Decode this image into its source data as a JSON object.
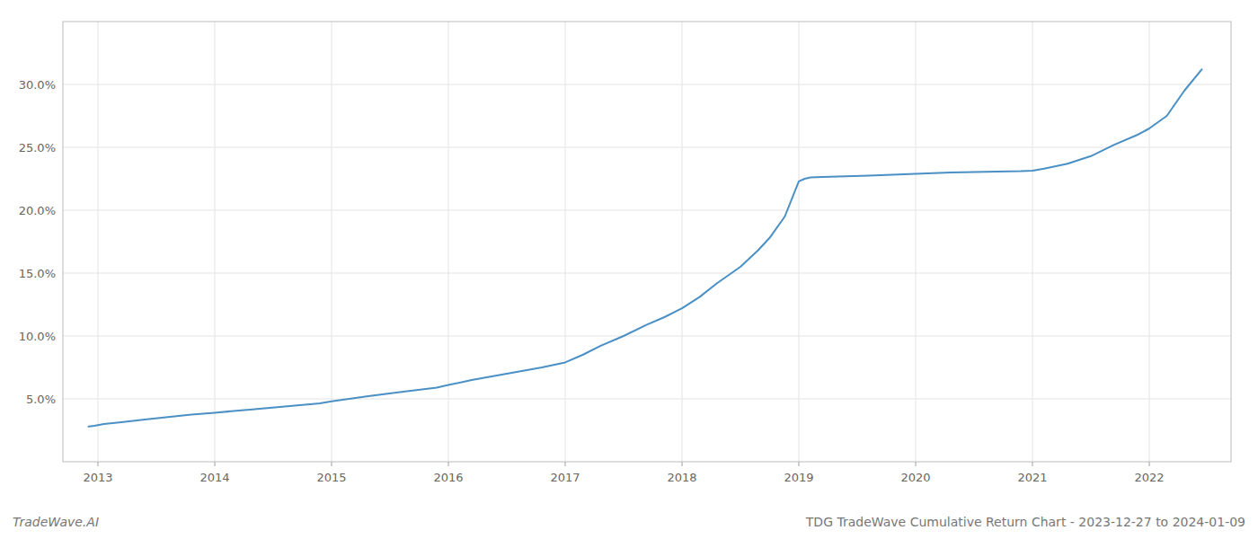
{
  "chart_data": {
    "type": "line",
    "annotations": [
      "TradeWave.AI",
      "TDG TradeWave Cumulative Return Chart - 2023-12-27 to 2024-01-09"
    ],
    "x": [
      2012.92,
      2012.97,
      2013.05,
      2013.2,
      2013.4,
      2013.6,
      2013.8,
      2014.0,
      2014.3,
      2014.6,
      2014.9,
      2015.0,
      2015.3,
      2015.6,
      2015.9,
      2016.0,
      2016.2,
      2016.5,
      2016.8,
      2017.0,
      2017.15,
      2017.3,
      2017.5,
      2017.7,
      2017.85,
      2018.0,
      2018.15,
      2018.3,
      2018.5,
      2018.65,
      2018.75,
      2018.88,
      2019.0,
      2019.05,
      2019.1,
      2019.2,
      2019.4,
      2019.6,
      2019.9,
      2020.0,
      2020.3,
      2020.6,
      2020.9,
      2021.0,
      2021.1,
      2021.3,
      2021.5,
      2021.7,
      2021.9,
      2022.0,
      2022.15,
      2022.3,
      2022.45
    ],
    "values": [
      2.8,
      2.85,
      3.0,
      3.15,
      3.35,
      3.55,
      3.75,
      3.9,
      4.15,
      4.4,
      4.65,
      4.8,
      5.2,
      5.55,
      5.9,
      6.1,
      6.5,
      7.0,
      7.5,
      7.9,
      8.5,
      9.2,
      10.0,
      10.9,
      11.5,
      12.2,
      13.1,
      14.2,
      15.5,
      16.8,
      17.8,
      19.5,
      22.3,
      22.5,
      22.6,
      22.65,
      22.7,
      22.75,
      22.85,
      22.9,
      23.0,
      23.05,
      23.1,
      23.15,
      23.3,
      23.7,
      24.3,
      25.2,
      26.0,
      26.5,
      27.5,
      29.5,
      31.2
    ],
    "color": "#4a90c4",
    "xlim": [
      2012.7,
      2022.7
    ],
    "xticks": [
      2013,
      2014,
      2015,
      2016,
      2017,
      2018,
      2019,
      2020,
      2021,
      2022
    ],
    "ylim": [
      0,
      35
    ],
    "yticks": [
      {
        "value": 5.0,
        "label": "5.0%"
      },
      {
        "value": 10.0,
        "label": "10.0%"
      },
      {
        "value": 15.0,
        "label": "15.0%"
      },
      {
        "value": 20.0,
        "label": "20.0%"
      },
      {
        "value": 25.0,
        "label": "25.0%"
      },
      {
        "value": 30.0,
        "label": "30.0%"
      }
    ],
    "grid": true
  }
}
